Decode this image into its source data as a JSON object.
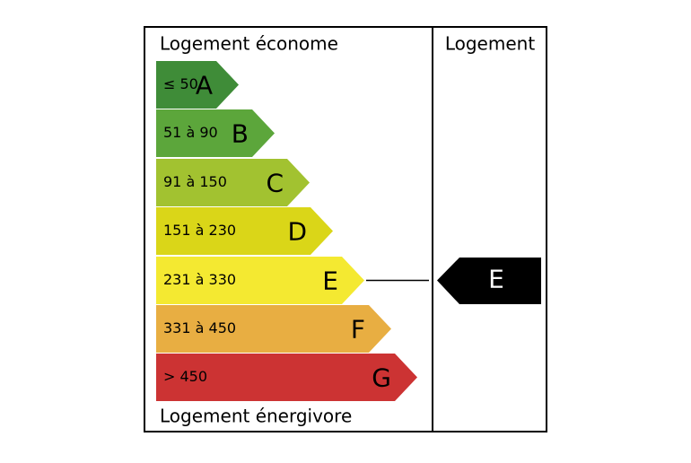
{
  "left_header": "Logement économe",
  "right_header": "Logement",
  "footer": "Logement énergivore",
  "classes": [
    {
      "range": "≤ 50",
      "letter": "A",
      "color": "#3f8c38"
    },
    {
      "range": "51 à 90",
      "letter": "B",
      "color": "#5ca63b"
    },
    {
      "range": "91 à 150",
      "letter": "C",
      "color": "#a2c230"
    },
    {
      "range": "151 à 230",
      "letter": "D",
      "color": "#dad618"
    },
    {
      "range": "231 à 330",
      "letter": "E",
      "color": "#f4e931"
    },
    {
      "range": "331 à 450",
      "letter": "F",
      "color": "#e8ae42"
    },
    {
      "range": "> 450",
      "letter": "G",
      "color": "#cc3333"
    }
  ],
  "rating": "E"
}
